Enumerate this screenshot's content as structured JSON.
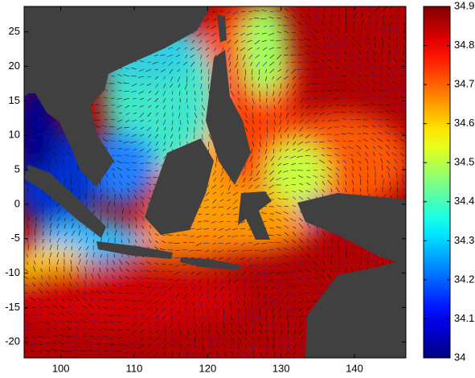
{
  "chart_data": {
    "type": "map",
    "xlim": [
      95,
      147
    ],
    "xticks": [
      100,
      110,
      120,
      130,
      140
    ],
    "ylim": [
      -22.3,
      28.7
    ],
    "yticks": [
      -20,
      -15,
      -10,
      -5,
      0,
      5,
      10,
      15,
      20,
      25
    ],
    "colormap": "jet",
    "colorbar": {
      "lim": [
        34,
        34.9
      ],
      "ticks": [
        34,
        34.1,
        34.2,
        34.3,
        34.4,
        34.5,
        34.6,
        34.7,
        34.8,
        34.9
      ]
    }
  }
}
